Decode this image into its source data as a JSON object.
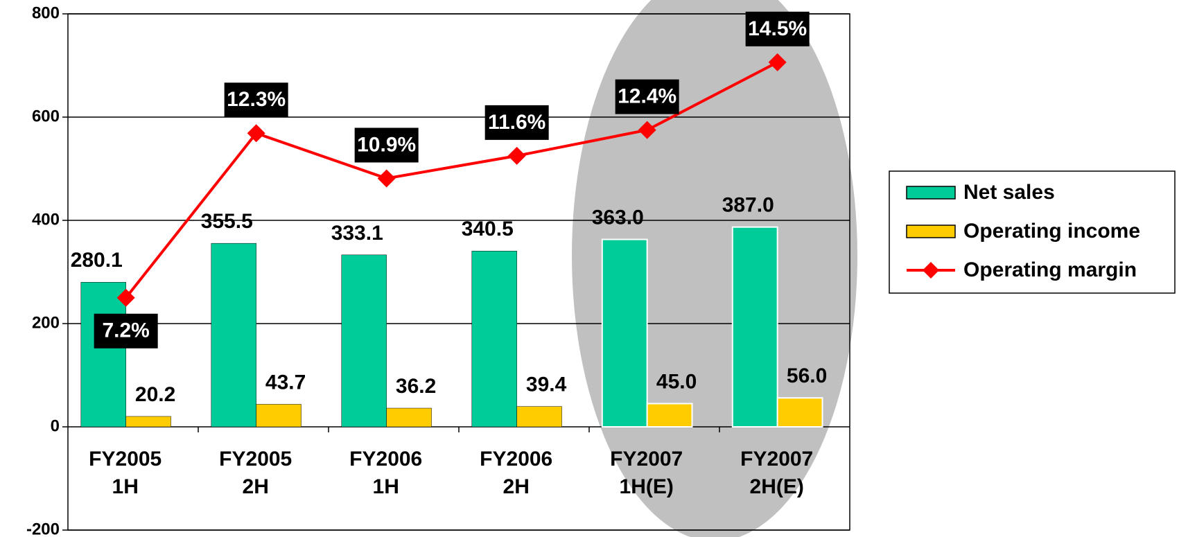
{
  "chart_data": {
    "type": "bar",
    "categories": [
      [
        "FY2005",
        "1H"
      ],
      [
        "FY2005",
        "2H"
      ],
      [
        "FY2006",
        "1H"
      ],
      [
        "FY2006",
        "2H"
      ],
      [
        "FY2007",
        "1H(E)"
      ],
      [
        "FY2007",
        "2H(E)"
      ]
    ],
    "series": [
      {
        "name": "Net sales",
        "color": "#00cc99",
        "values": [
          280.1,
          355.5,
          333.1,
          340.5,
          363.0,
          387.0
        ],
        "value_labels": [
          "280.1",
          "355.5",
          "333.1",
          "340.5",
          "363.0",
          "387.0"
        ]
      },
      {
        "name": "Operating income",
        "color": "#ffcc00",
        "values": [
          20.2,
          43.7,
          36.2,
          39.4,
          45.0,
          56.0
        ],
        "value_labels": [
          "20.2",
          "43.7",
          "36.2",
          "39.4",
          "45.0",
          "56.0"
        ]
      },
      {
        "name": "Operating margin",
        "type": "line",
        "axis": "y2",
        "color": "#ff0000",
        "values": [
          7.2,
          12.3,
          10.9,
          11.6,
          12.4,
          14.5
        ],
        "value_labels": [
          "7.2%",
          "12.3%",
          "10.9%",
          "11.6%",
          "12.4%",
          "14.5%"
        ]
      }
    ],
    "ylim": [
      -200,
      800
    ],
    "yticks": [
      -200,
      0,
      200,
      400,
      600,
      800
    ],
    "y2lim": [
      0,
      16
    ],
    "grid": true,
    "legend": "right"
  }
}
